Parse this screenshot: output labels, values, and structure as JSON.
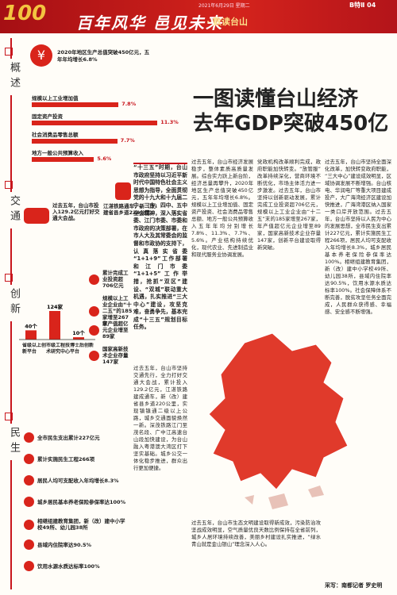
{
  "header": {
    "logo": "100",
    "date": "2021年6月29日 星期二",
    "edition": "B特Ⅱ 04",
    "title": "百年风华 邑见未来",
    "subtitle": "· 数读台山"
  },
  "sections": [
    "概述",
    "交通",
    "创新",
    "民生"
  ],
  "headline": [
    "一图读懂台山经济",
    "去年GDP突破450亿"
  ],
  "overview": {
    "lead": "2020年地区生产总值突破450亿元，五年年均增长6.8%",
    "items": [
      {
        "label": "规模以上工业增加值",
        "value": 7.8,
        "value_label": "7.8%"
      },
      {
        "label": "固定资产投资",
        "value": 11.3,
        "value_label": "11.3%"
      },
      {
        "label": "社会消费品零售总额",
        "value": 7.7,
        "value_label": "7.7%"
      },
      {
        "label": "地方一般公共预算收入",
        "value": 5.6,
        "value_label": "5.6%"
      }
    ]
  },
  "transport": [
    "过去五年，台山市投入129.2亿元打好交通大会战。",
    "江湛铁路通车，新（改）建省县乡道220公里。"
  ],
  "innovation": {
    "bars": [
      {
        "label": "省级以上创新平台",
        "value": 40,
        "value_label": "40个"
      },
      {
        "label": "市级工程技术研究中心",
        "value": 124,
        "value_label": "124家"
      },
      {
        "label": "博士后创新平台",
        "value": 10,
        "value_label": "10个"
      }
    ],
    "items": [
      "累计完成工业投资超706亿元",
      "规模以上工业企业由“十二五”的185家增至267家",
      "年产值超亿元企业增至89家",
      "国家高新技术企业存量147家"
    ]
  },
  "livelihood": [
    "全市民生支出累计227亿元",
    "累计实施民生工程266项",
    "居民人均可支配收入年均增长8.3%",
    "城乡居民基本养老保险参保率达100%",
    "相继组建教育集团，新（改）建中小学校49所、幼儿园38所",
    "县域内住院率达90.5%",
    "饮用水源水质达标率100%"
  ],
  "intro": "“十三五”时期，台山市政府坚持以习近平新时代中国特色社会主义思想为指导，全面贯彻党的十九大和十九届二中、三中、四中、五中全会精神，深入落实省委、江门市委、市委和市政府的决策部署，在市人大及其常委会的监督和市政协的支持下，认真落实省委“1+1+9”工作部署和江门市委“1+1+5”工作举措，抢抓“双区”建设、“双城”联动重大机遇，扎实推进“三大中心”建设，攻坚克难，奋勇争先，基本完成“十三五”规划目标任务。",
  "body": [
    "过去五年，台山市坚持交通先行，全力打好交通大会战，累计投入129.2亿元，江湛铁路建成通车，新（改）建省县乡道220公里，实现镇镇通二级以上公路，城乡交通面貌焕然一新。深茂铁路江门至茂名段、广中江高速台山段加快建设，为台山融入粤港澳大湾区打下坚实基础。城乡公交一体化稳步推进，群众出行更加便捷。",
    "过去五年，台山市经济发展稳步，整体素质高质量发展。综合实力跃上新台阶，经济总量再攀升，2020年地区生产总值突破450亿元，五年年均增长6.8%。规模以上工业增加值、固定资产投资、社会消费品零售总额、地方一般公共预算收入五年年均分别增长7.8%、11.3%、7.7%、5.6%。产业结构持续优化，现代农业、先进制造业和现代服务业协调发展。",
    "党政机构改革顺利完成，政府职能加快转变。“放管服”改革持续深化，营商环境不断优化，市场主体活力进一步激发。过去五年，台山市坚持以创新驱动发展，累计完成工业投资超706亿元，规模以上工业企业由“十二五”末的185家增至267家，年产值超亿元企业增至89家，国家高新技术企业存量147家，创新平台建设取得新突破。",
    "过去五年，台山市坚持全面深化改革，加快转变政府职能，“三大中心”建设成效明显，区域协调发展不断增强。台山核电、华润电厂等重大项目建成投产，大广海湾经济区建设加快推进，广海湾港区纳入国家一类口岸开放范围。过去五年，台山市坚持以人民为中心的发展思想，全市民生支出累计227亿元，累计实施民生工程266项，居民人均可支配收入年均增长8.3%，城乡居民基本养老保险参保率达100%。相继组建教育集团，新（改）建中小学校49所、幼儿园38所，县域内住院率达90.5%，饮用水源水质达标率100%。社会保障体系不断完善，脱贫攻坚任务全面完成，人民群众获得感、幸福感、安全感不断增强。",
    "过去五年，台山市生态文明建设取得新成效，污染防治攻坚战成效明显，空气质量优良天数比例保持在全省前列，城乡人居环境持续改善，美丽乡村建设扎实推进，“绿水青山就是金山银山”理念深入人心。"
  ],
  "byline": "采写：南都记者 罗史明"
}
